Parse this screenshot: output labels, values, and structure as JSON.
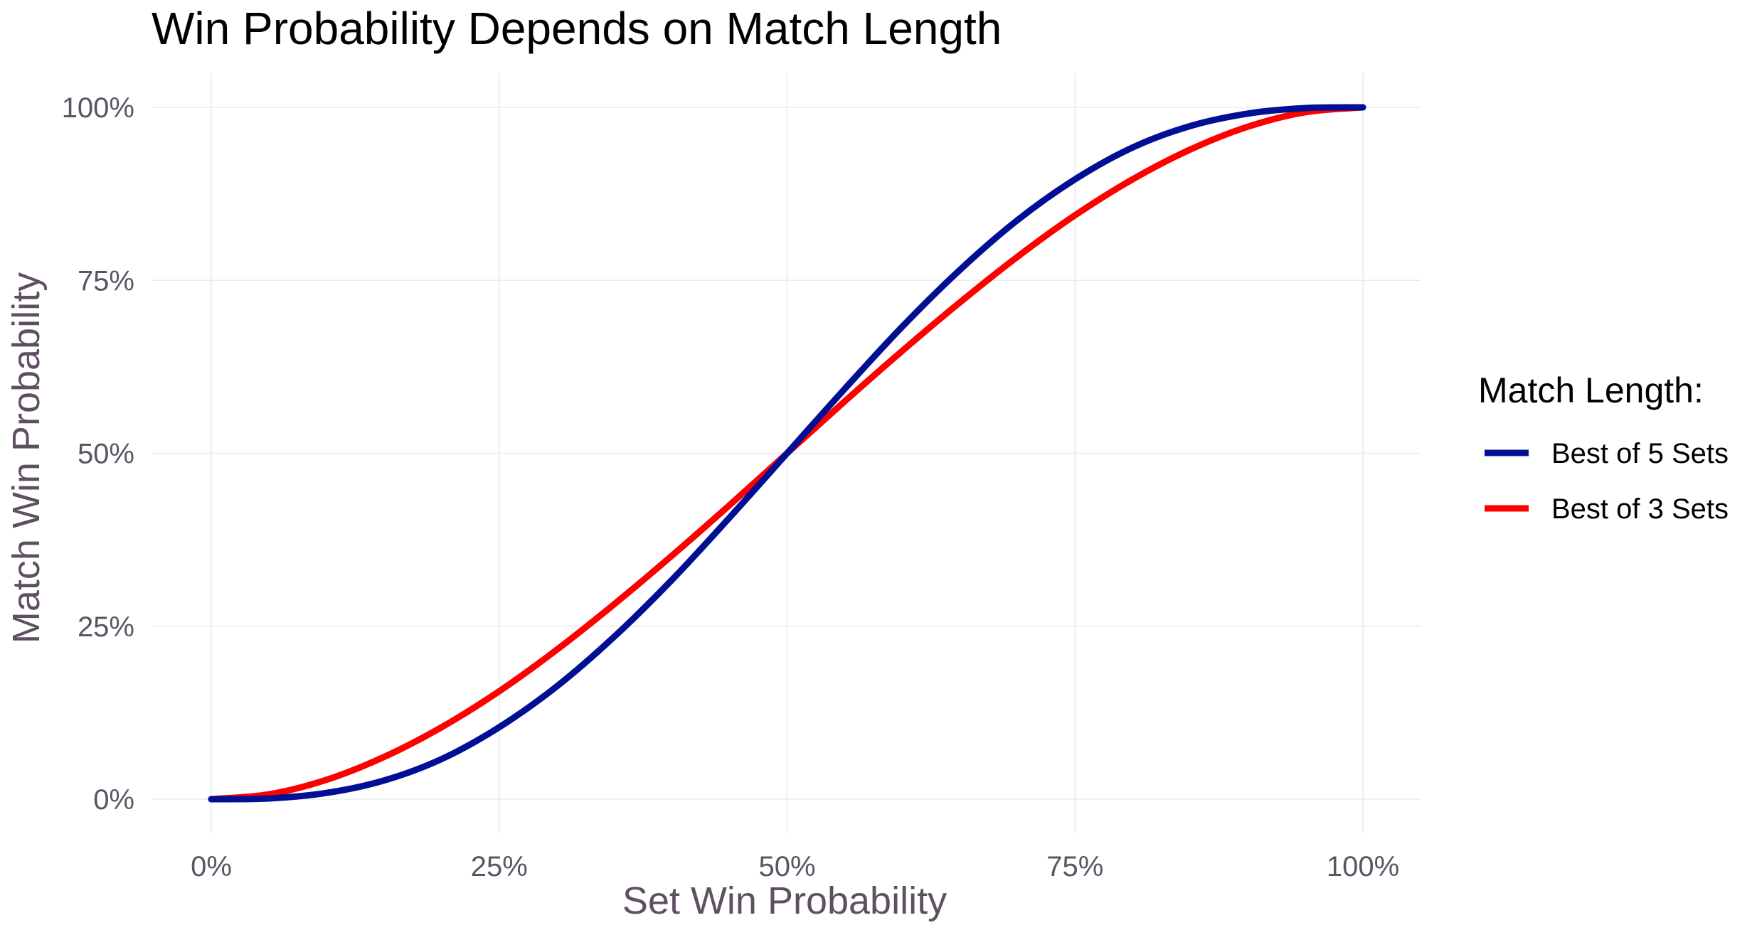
{
  "chart_data": {
    "type": "line",
    "title": "Win Probability Depends on Match Length",
    "xlabel": "Set Win Probability",
    "ylabel": "Match Win Probability",
    "xlim": [
      0,
      1
    ],
    "ylim": [
      0,
      1
    ],
    "x_ticks": [
      0,
      0.25,
      0.5,
      0.75,
      1
    ],
    "x_tick_labels": [
      "0%",
      "25%",
      "50%",
      "75%",
      "100%"
    ],
    "y_ticks": [
      0,
      0.25,
      0.5,
      0.75,
      1
    ],
    "y_tick_labels": [
      "0%",
      "25%",
      "50%",
      "75%",
      "100%"
    ],
    "grid": true,
    "legend": {
      "title": "Match Length:",
      "placement": "right"
    },
    "x": [
      0,
      0.05,
      0.1,
      0.15,
      0.2,
      0.25,
      0.3,
      0.35,
      0.4,
      0.45,
      0.5,
      0.55,
      0.6,
      0.65,
      0.7,
      0.75,
      0.8,
      0.85,
      0.9,
      0.95,
      1
    ],
    "series": [
      {
        "name": "Best of 5 Sets",
        "color": "#000f94",
        "values": [
          0,
          0.001,
          0.009,
          0.027,
          0.058,
          0.104,
          0.163,
          0.235,
          0.317,
          0.407,
          0.5,
          0.593,
          0.683,
          0.765,
          0.837,
          0.896,
          0.942,
          0.973,
          0.991,
          0.999,
          1
        ]
      },
      {
        "name": "Best of 3 Sets",
        "color": "#ff0000",
        "values": [
          0,
          0.007,
          0.028,
          0.061,
          0.104,
          0.156,
          0.216,
          0.282,
          0.352,
          0.425,
          0.5,
          0.575,
          0.648,
          0.718,
          0.784,
          0.844,
          0.896,
          0.939,
          0.972,
          0.993,
          1
        ]
      }
    ]
  }
}
